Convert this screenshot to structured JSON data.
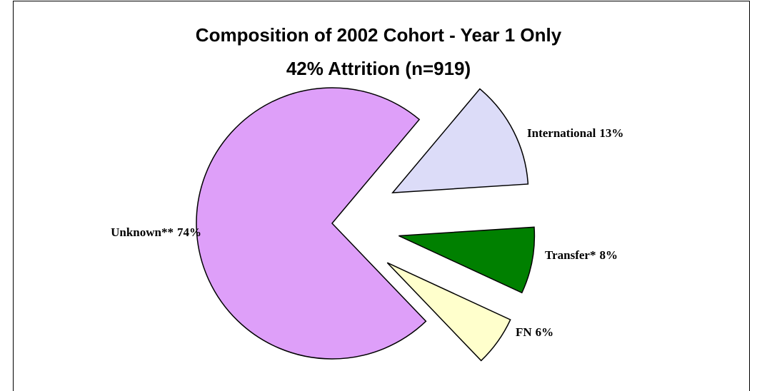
{
  "chart_data": {
    "type": "pie",
    "title": "Composition of 2002 Cohort - Year 1 Only",
    "subtitle": "42% Attrition (n=919)",
    "categories": [
      "International",
      "Transfer*",
      "FN",
      "Unknown**"
    ],
    "values": [
      13,
      8,
      6,
      74
    ],
    "value_labels": [
      "13%",
      "8%",
      "6%",
      "74%"
    ],
    "colors": [
      "#dcdcf8",
      "#008000",
      "#ffffcc",
      "#de9ff9"
    ]
  }
}
